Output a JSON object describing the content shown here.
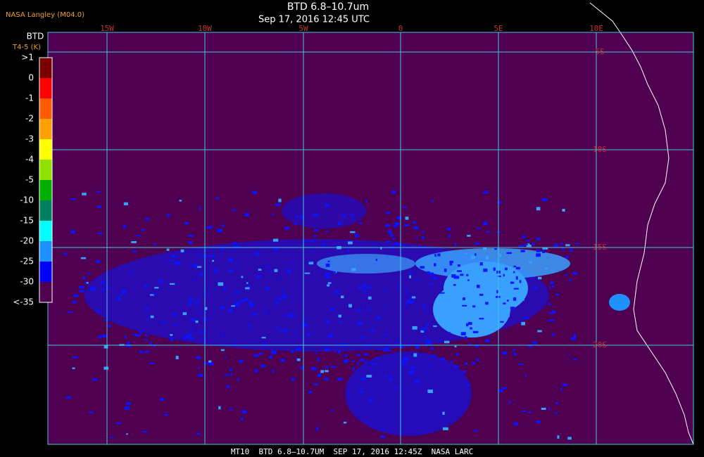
{
  "header": {
    "source": "NASA Langley (M04.0)",
    "title": "BTD 6.8–10.7um",
    "datetime": "Sep 17, 2016 12:45 UTC"
  },
  "legend": {
    "title": "BTD",
    "subtitle": "T4-5 (K)",
    "labels": [
      ">1",
      "0",
      "-1",
      "-2",
      "-3",
      "-4",
      "-5",
      "-10",
      "-15",
      "-20",
      "-25",
      "-30",
      "<-35"
    ],
    "colors": [
      "#7a0000",
      "#ff0000",
      "#ff5a00",
      "#ffa000",
      "#ffff00",
      "#90e000",
      "#00b000",
      "#008060",
      "#00ffff",
      "#1e90ff",
      "#0000ff",
      "#500050"
    ]
  },
  "map": {
    "longitude_labels": [
      "15W",
      "10W",
      "5W",
      "0",
      "5E",
      "10E"
    ],
    "latitude_labels": [
      "5S",
      "10S",
      "15S",
      "20S"
    ]
  },
  "footer": "MT10  BTD 6.8–10.7UM  SEP 17, 2016 12:45Z  NASA LARC"
}
